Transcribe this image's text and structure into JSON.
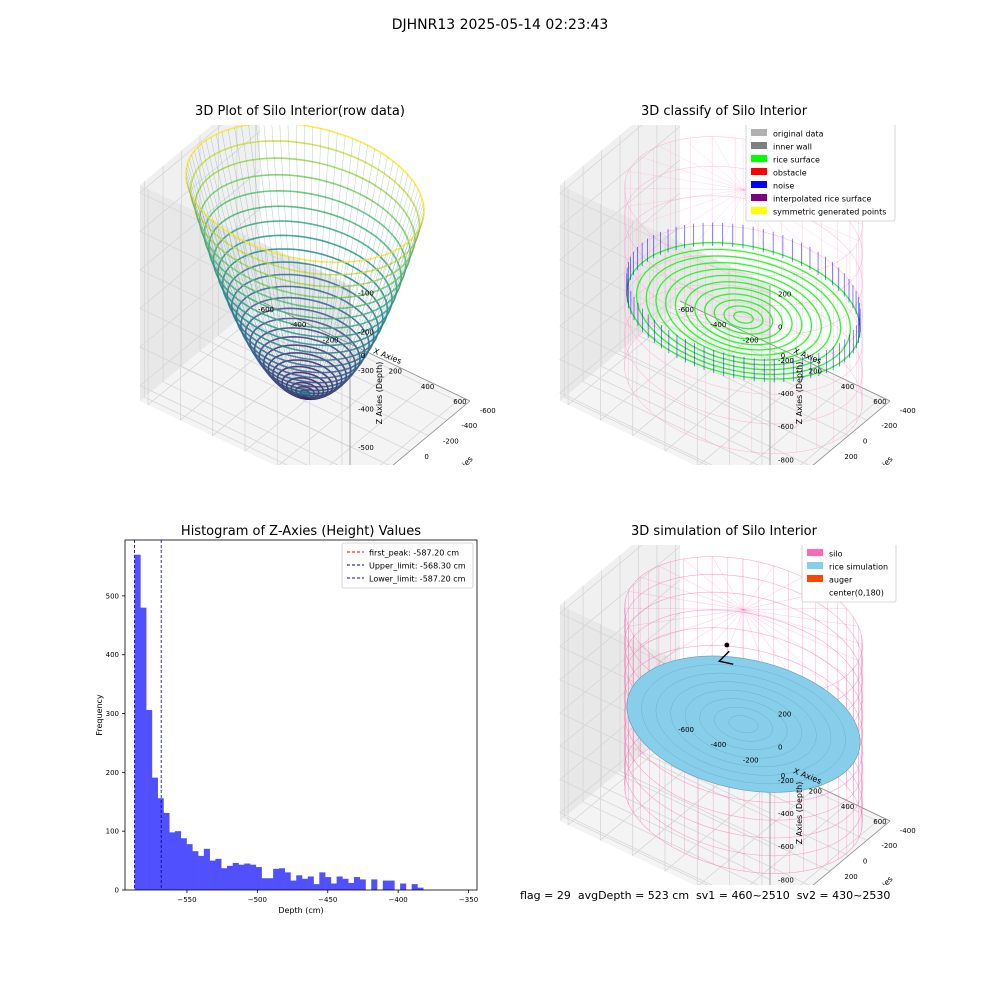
{
  "figure": {
    "suptitle": "DJHNR13 2025-05-14 02:23:43",
    "footer": "flag = 29  avgDepth = 523 cm  sv1 = 460~2510  sv2 = 430~2530"
  },
  "axis_text": {
    "x_label": "X Axies",
    "y_label": "Y Axies",
    "z_label": "Z Axies (Depth)"
  },
  "colors": {
    "background": "#ffffff",
    "pane": "#f2f2f2",
    "grid": "#d6d6d6",
    "hist_bar": "#5050ff",
    "silo": "#ff69b4",
    "rice_simulation": "#87ceeb",
    "rice_surface": "#00ff00",
    "noise": "#0000ff"
  },
  "chart_data": [
    {
      "type": "scatter3d",
      "title": "3D Plot of Silo Interior(row data)",
      "xlabel": "X Axies",
      "ylabel": "Y Axies",
      "zlabel": "Z Axies (Depth)",
      "xlim": [
        -650,
        650
      ],
      "ylim": [
        -650,
        650
      ],
      "zlim": [
        -640,
        -80
      ],
      "x_ticks": [
        "-600",
        "-400",
        "-200",
        "0",
        "200",
        "400",
        "600"
      ],
      "y_ticks": [
        "-600",
        "-400",
        "-200",
        "0",
        "200",
        "400",
        "600"
      ],
      "z_ticks": [
        "-600",
        "-500",
        "-400",
        "-300",
        "-200",
        "-100"
      ],
      "surface": {
        "shape": "paraboloid bowl",
        "rim_radius": 640,
        "rim_z": -100,
        "bottom_z": -620,
        "colormap": "viridis"
      }
    },
    {
      "type": "scatter3d",
      "title": "3D classify of Silo Interior",
      "xlabel": "X Axies",
      "ylabel": "Y Axies",
      "zlabel": "Z Axies (Depth)",
      "xlim": [
        -650,
        650
      ],
      "ylim": [
        -450,
        850
      ],
      "zlim": [
        -1050,
        250
      ],
      "x_ticks": [
        "-600",
        "-400",
        "-200",
        "0",
        "200",
        "400",
        "600"
      ],
      "y_ticks": [
        "-400",
        "-200",
        "0",
        "200",
        "400",
        "600",
        "800"
      ],
      "z_ticks": [
        "-1000",
        "-800",
        "-600",
        "-400",
        "-200",
        "0",
        "200"
      ],
      "legend": {
        "position": "upper right",
        "entries": [
          {
            "label": "original data",
            "color": "#b0b0b0"
          },
          {
            "label": "inner wall",
            "color": "#808080"
          },
          {
            "label": "rice surface",
            "color": "#00ff00"
          },
          {
            "label": "obstacle",
            "color": "#ff0000"
          },
          {
            "label": "noise",
            "color": "#0000ff"
          },
          {
            "label": "interpolated rice surface",
            "color": "#800080"
          },
          {
            "label": "symmetric generated points",
            "color": "#ffff00"
          }
        ]
      },
      "silo": {
        "radius": 640,
        "z_top": 30,
        "z_bottom": -1040
      },
      "rice_surface_z": -600
    },
    {
      "type": "bar",
      "title": "Histogram of Z-Axies (Height) Values",
      "xlabel": "Depth (cm)",
      "ylabel": "Frequency",
      "xlim": [
        -594,
        -344
      ],
      "ylim": [
        0,
        595
      ],
      "x_ticks": [
        -550,
        -500,
        -450,
        -400,
        -350
      ],
      "y_ticks": [
        0,
        100,
        200,
        300,
        400,
        500
      ],
      "bin_start": -587.2,
      "bin_width": 4.1,
      "values": [
        570,
        480,
        306,
        191,
        156,
        131,
        98,
        100,
        88,
        78,
        66,
        58,
        70,
        50,
        53,
        37,
        41,
        46,
        43,
        45,
        43,
        39,
        20,
        20,
        36,
        37,
        30,
        16,
        25,
        19,
        23,
        10,
        30,
        22,
        11,
        23,
        19,
        12,
        22,
        18,
        0,
        18,
        0,
        16,
        16,
        0,
        11,
        0,
        10,
        4
      ],
      "legend": {
        "position": "upper right",
        "entries": [
          {
            "label": "first_peak: -587.20 cm",
            "value": -587.2,
            "color": "#ff0000",
            "style": "dashed"
          },
          {
            "label": "Upper_limit: -568.30 cm",
            "value": -568.3,
            "color": "#00008b",
            "style": "dashed"
          },
          {
            "label": "Lower_limit: -587.20 cm",
            "value": -587.2,
            "color": "#0000ff",
            "style": "dashed"
          }
        ]
      }
    },
    {
      "type": "scatter3d",
      "title": "3D simulation of Silo Interior",
      "xlabel": "X Axies",
      "ylabel": "Y Axies",
      "zlabel": "Z Axies (Depth)",
      "xlim": [
        -650,
        650
      ],
      "ylim": [
        -450,
        850
      ],
      "zlim": [
        -1050,
        250
      ],
      "x_ticks": [
        "-600",
        "-400",
        "-200",
        "0",
        "200",
        "400",
        "600"
      ],
      "y_ticks": [
        "-400",
        "-200",
        "0",
        "200",
        "400",
        "600",
        "800"
      ],
      "z_ticks": [
        "-1000",
        "-800",
        "-600",
        "-400",
        "-200",
        "0",
        "200"
      ],
      "legend": {
        "position": "upper right",
        "entries": [
          {
            "label": "silo",
            "color": "#ff69b4"
          },
          {
            "label": "rice simulation",
            "color": "#87ceeb"
          },
          {
            "label": "auger",
            "color": "#ff4500"
          },
          {
            "label": "center(0,180)",
            "color": ""
          }
        ]
      },
      "silo": {
        "radius": 640,
        "z_top": 30,
        "z_bottom": -1040
      },
      "rice_surface_z": -560
    }
  ]
}
